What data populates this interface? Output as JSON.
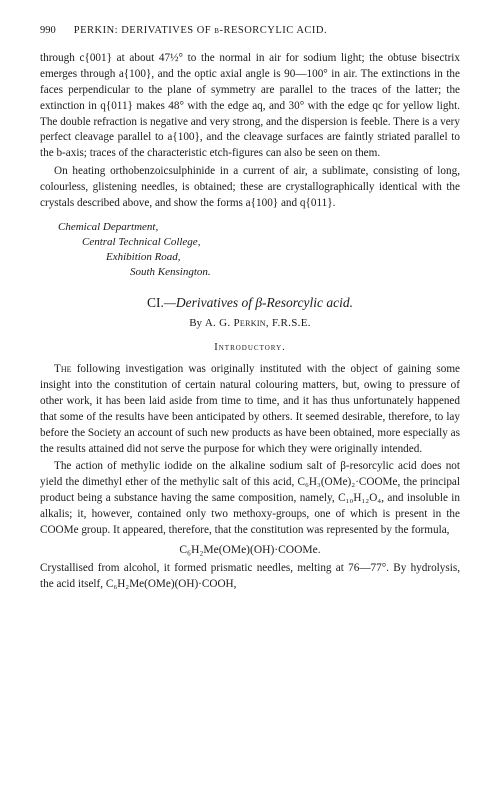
{
  "header": {
    "page_number": "990",
    "running_title": "PERKIN: DERIVATIVES OF β-RESORCYLIC ACID."
  },
  "continuation": {
    "para1": "through c{001} at about 47½° to the normal in air for sodium light; the obtuse bisectrix emerges through a{100}, and the optic axial angle is 90—100° in air. The extinctions in the faces perpendicular to the plane of symmetry are parallel to the traces of the latter; the extinction in q{011} makes 48° with the edge aq, and 30° with the edge qc for yellow light. The double refraction is negative and very strong, and the dispersion is feeble. There is a very perfect cleavage parallel to a{100}, and the cleavage surfaces are faintly striated parallel to the b-axis; traces of the characteristic etch-figures can also be seen on them.",
    "para2": "On heating orthobenzoicsulphinide in a current of air, a sublimate, consisting of long, colourless, glistening needles, is obtained; these are crystallographically identical with the crystals described above, and show the forms a{100} and q{011}."
  },
  "signature": {
    "line1": "Chemical Department,",
    "line2": "Central Technical College,",
    "line3": "Exhibition Road,",
    "line4": "South Kensington."
  },
  "article": {
    "number": "CI.",
    "title": "—Derivatives of β-Resorcylic acid.",
    "byline_by": "By ",
    "byline_name": "A. G. Perkin, F.R.S.E.",
    "section": "Introductory.",
    "para1_lead": "The",
    "para1": " following investigation was originally instituted with the object of gaining some insight into the constitution of certain natural colouring matters, but, owing to pressure of other work, it has been laid aside from time to time, and it has thus unfortunately happened that some of the results have been anticipated by others. It seemed desirable, therefore, to lay before the Society an account of such new products as have been obtained, more especially as the results attained did not serve the purpose for which they were originally intended.",
    "para2_a": "The action of methylic iodide on the alkaline sodium salt of β-resorcylic acid does not yield the dimethyl ether of the methylic salt of this acid, C",
    "para2_b": "(OMe)",
    "para2_c": "·COOMe, the principal product being a substance having the same composition, namely, C",
    "para2_d": ", and insoluble in alkalis; it, however, contained only two methoxy-groups, one of which is present in the COOMe group. It appeared, therefore, that the constitution was represented by the formula,",
    "formula": "C₆H₂Me(OMe)(OH)·COOMe.",
    "para3_a": "Crystallised from alcohol, it formed prismatic needles, melting at 76—77°. By hydrolysis, the acid itself, C",
    "para3_b": "Me(OMe)(OH)·COOH,"
  }
}
